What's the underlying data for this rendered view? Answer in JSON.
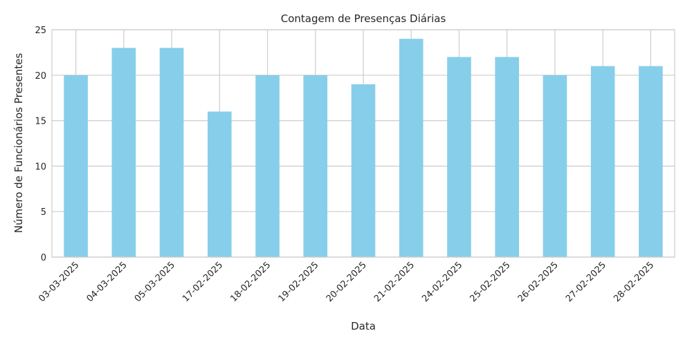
{
  "chart_data": {
    "type": "bar",
    "title": "Contagem de Presenças Diárias",
    "xlabel": "Data",
    "ylabel": "Número de Funcionários Presentes",
    "categories": [
      "03-03-2025",
      "04-03-2025",
      "05-03-2025",
      "17-02-2025",
      "18-02-2025",
      "19-02-2025",
      "20-02-2025",
      "21-02-2025",
      "24-02-2025",
      "25-02-2025",
      "26-02-2025",
      "27-02-2025",
      "28-02-2025"
    ],
    "values": [
      20,
      23,
      23,
      16,
      20,
      20,
      19,
      24,
      22,
      22,
      20,
      21,
      21
    ],
    "ylim": [
      0,
      25
    ],
    "yticks": [
      0,
      5,
      10,
      15,
      20,
      25
    ],
    "grid": true,
    "legend": "none",
    "colors": {
      "bar": "#87CEEB",
      "grid": "#cccccc",
      "frame": "#cccccc",
      "background": "#ffffff"
    }
  }
}
